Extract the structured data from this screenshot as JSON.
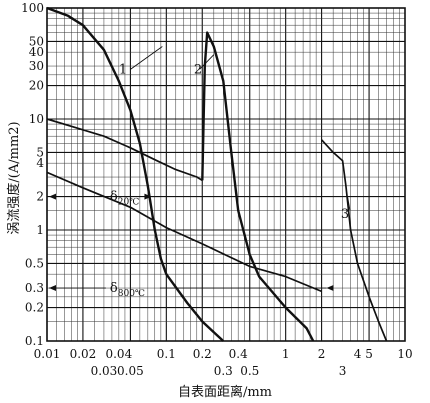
{
  "chart_data": {
    "type": "line",
    "xscale": "log",
    "yscale": "log",
    "xlim": [
      0.01,
      10
    ],
    "ylim": [
      0.1,
      100
    ],
    "grid": true,
    "xlabel": "自表面距离/mm",
    "ylabel": "涡流强度/(A/mm2)",
    "x_tick_labels_top_row": [
      "0.01",
      "0.02",
      "0.04",
      "0.1",
      "0.2",
      "0.4",
      "1",
      "2",
      "4",
      "5",
      "10"
    ],
    "x_tick_labels_bottom_row": [
      "0.03",
      "0.05",
      "0.3",
      "0.5",
      "3"
    ],
    "y_tick_labels": [
      "100",
      "50",
      "40",
      "30",
      "20",
      "10",
      "5",
      "4",
      "2",
      "1",
      "0.5",
      "0.3",
      "0.2",
      "0.1"
    ],
    "series": [
      {
        "name": "1",
        "style": "heavy",
        "points": [
          [
            0.01,
            100
          ],
          [
            0.015,
            85
          ],
          [
            0.02,
            70
          ],
          [
            0.03,
            42
          ],
          [
            0.04,
            22
          ],
          [
            0.05,
            12
          ],
          [
            0.06,
            6
          ],
          [
            0.07,
            2.5
          ],
          [
            0.08,
            1
          ],
          [
            0.09,
            0.55
          ],
          [
            0.1,
            0.4
          ],
          [
            0.15,
            0.22
          ],
          [
            0.2,
            0.15
          ],
          [
            0.25,
            0.12
          ],
          [
            0.3,
            0.1
          ]
        ]
      },
      {
        "name": "",
        "style": "light",
        "points": [
          [
            0.01,
            10
          ],
          [
            0.02,
            8
          ],
          [
            0.03,
            7
          ],
          [
            0.05,
            5.5
          ],
          [
            0.08,
            4.3
          ],
          [
            0.12,
            3.5
          ],
          [
            0.18,
            3
          ],
          [
            0.2,
            2.8
          ]
        ]
      },
      {
        "name": "2",
        "style": "heavy",
        "points": [
          [
            0.2,
            2.8
          ],
          [
            0.21,
            30
          ],
          [
            0.22,
            60
          ],
          [
            0.25,
            45
          ],
          [
            0.3,
            22
          ],
          [
            0.35,
            5
          ],
          [
            0.4,
            1.5
          ],
          [
            0.5,
            0.6
          ],
          [
            0.6,
            0.38
          ],
          [
            1.0,
            0.2
          ],
          [
            1.5,
            0.13
          ],
          [
            1.7,
            0.1
          ]
        ]
      },
      {
        "name": "3",
        "style": "light",
        "points": [
          [
            2,
            6.5
          ],
          [
            2.5,
            5
          ],
          [
            3,
            4.2
          ],
          [
            3.2,
            2.5
          ],
          [
            3.5,
            1
          ],
          [
            4,
            0.5
          ],
          [
            5,
            0.25
          ],
          [
            6,
            0.15
          ],
          [
            7,
            0.1
          ]
        ]
      },
      {
        "name": "",
        "style": "light",
        "points": [
          [
            0.01,
            3.3
          ],
          [
            0.02,
            2.4
          ],
          [
            0.05,
            1.6
          ],
          [
            0.1,
            1.05
          ],
          [
            0.2,
            0.75
          ],
          [
            0.5,
            0.47
          ],
          [
            1,
            0.38
          ],
          [
            2,
            0.28
          ]
        ]
      }
    ],
    "annotations": [
      {
        "text": "δ",
        "sub": "20℃",
        "x": 0.035,
        "y": 2.0
      },
      {
        "text": "δ",
        "sub": "800℃",
        "x": 0.035,
        "y": 0.3
      },
      {
        "text": "1",
        "x": 0.04,
        "y": 28
      },
      {
        "text": "2",
        "x": 0.17,
        "y": 28
      },
      {
        "text": "3",
        "x": 2.9,
        "y": 1.4
      }
    ]
  }
}
